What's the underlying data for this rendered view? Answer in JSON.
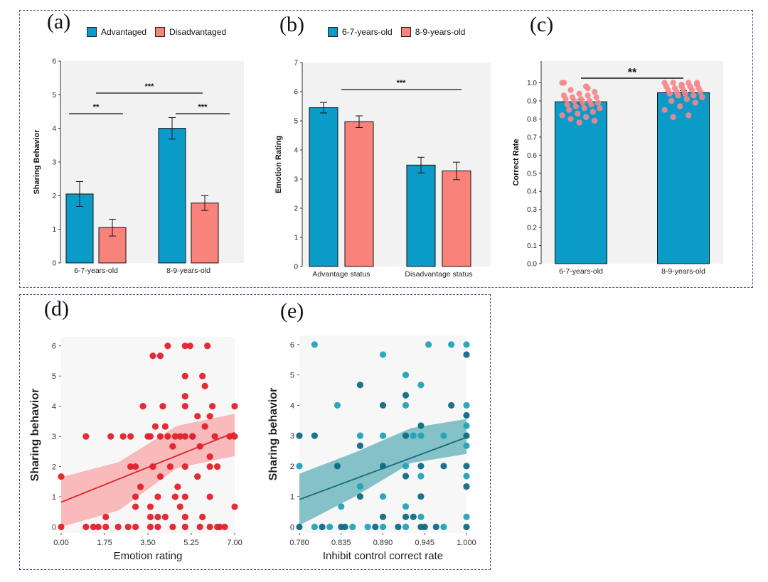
{
  "colors": {
    "blue": "#0b9bc9",
    "salmon": "#f9837a",
    "red": "#e3202b",
    "red_band": "#f8a5a6",
    "teal_dark": "#0e6b82",
    "teal_light": "#20a3b8",
    "teal_band": "#5fb0b7",
    "pink": "#f3878c",
    "plot_bg": "#f2f2f2",
    "frame": "#4a4f8a"
  },
  "panels": {
    "a": "(a)",
    "b": "(b)",
    "c": "(c)",
    "d": "(d)",
    "e": "(e)"
  },
  "chart_data": [
    {
      "id": "a",
      "type": "bar",
      "ylabel": "Sharing Behavior",
      "ylim": [
        0,
        6
      ],
      "yticks": [
        "0",
        "1",
        "2",
        "3",
        "4",
        "5",
        "6"
      ],
      "categories": [
        "6-7-years-old",
        "8-9-years-old"
      ],
      "series": [
        {
          "name": "Advantaged",
          "values": [
            2.05,
            4.0
          ],
          "errors": [
            0.37,
            0.32
          ]
        },
        {
          "name": "Disadvantaged",
          "values": [
            1.05,
            1.78
          ],
          "errors": [
            0.25,
            0.22
          ]
        }
      ],
      "annotations": [
        {
          "text": "**",
          "from": "6-7-years-old Advantaged",
          "to": "6-7-years-old Disadvantaged",
          "y": 4.4
        },
        {
          "text": "***",
          "from": "8-9-years-old Advantaged",
          "to": "8-9-years-old Disadvantaged",
          "y": 4.4
        },
        {
          "text": "***",
          "from": "6-7-years-old",
          "to": "8-9-years-old",
          "y": 5.0
        }
      ]
    },
    {
      "id": "b",
      "type": "bar",
      "ylabel": "Emotion Rating",
      "ylim": [
        0,
        7
      ],
      "yticks": [
        "0",
        "1",
        "2",
        "3",
        "4",
        "5",
        "6",
        "7"
      ],
      "categories": [
        "Advantage status",
        "Disadvantage status"
      ],
      "series": [
        {
          "name": "6-7-years-old",
          "values": [
            5.45,
            3.48
          ],
          "errors": [
            0.18,
            0.27
          ]
        },
        {
          "name": "8-9-years-old",
          "values": [
            4.97,
            3.28
          ],
          "errors": [
            0.2,
            0.3
          ]
        }
      ],
      "annotations": [
        {
          "text": "***",
          "from": "Advantage status",
          "to": "Disadvantage status",
          "y": 6.2
        }
      ]
    },
    {
      "id": "c",
      "type": "bar",
      "ylabel": "Correct Rate",
      "ylim": [
        0,
        1.12
      ],
      "yticks": [
        "0.0",
        "0.1",
        "0.2",
        "0.3",
        "0.4",
        "0.5",
        "0.6",
        "0.7",
        "0.8",
        "0.9",
        "1.0"
      ],
      "categories": [
        "6-7-years-old",
        "8-9-years-old"
      ],
      "values": [
        0.895,
        0.945
      ],
      "errors": [
        0.012,
        0.012
      ],
      "points": [
        [
          1.0,
          0.98,
          0.96,
          0.95,
          0.94,
          0.93,
          0.93,
          0.92,
          0.92,
          0.91,
          0.91,
          0.9,
          0.9,
          0.89,
          0.89,
          0.88,
          0.88,
          0.87,
          0.86,
          0.86,
          0.85,
          0.84,
          0.83,
          0.82,
          0.81,
          0.8,
          0.79,
          0.78,
          1.0,
          0.97
        ],
        [
          1.0,
          1.0,
          1.0,
          0.99,
          0.99,
          0.98,
          0.98,
          0.97,
          0.97,
          0.96,
          0.96,
          0.96,
          0.95,
          0.95,
          0.94,
          0.94,
          0.93,
          0.93,
          0.92,
          0.91,
          0.9,
          0.89,
          0.87,
          0.85,
          0.82,
          0.81,
          1.0,
          0.98
        ]
      ],
      "annotations": [
        {
          "text": "**",
          "from": "6-7-years-old",
          "to": "8-9-years-old",
          "y": 1.07
        }
      ]
    },
    {
      "id": "d",
      "type": "scatter",
      "xlabel": "Emotion rating",
      "ylabel": "Sharing behavior",
      "xlim": [
        0,
        7
      ],
      "ylim": [
        -0.2,
        6.3
      ],
      "xticks": [
        "0.00",
        "1.75",
        "3.50",
        "5.25",
        "7.00"
      ],
      "yticks": [
        "0",
        "1",
        "2",
        "3",
        "4",
        "5",
        "6"
      ],
      "fit": {
        "intercept": 0.82,
        "slope": 0.33,
        "band_lo": [
          0.0,
          0.55,
          1.95,
          2.35
        ],
        "band_hi": [
          1.65,
          2.15,
          3.35,
          3.75
        ]
      },
      "points": [
        [
          0,
          0
        ],
        [
          0,
          1.67
        ],
        [
          1,
          0
        ],
        [
          1,
          3
        ],
        [
          1.3,
          0
        ],
        [
          1.5,
          0
        ],
        [
          1.8,
          0
        ],
        [
          1.8,
          0.33
        ],
        [
          2,
          3
        ],
        [
          2.3,
          0
        ],
        [
          2.5,
          3
        ],
        [
          2.7,
          0
        ],
        [
          2.8,
          3
        ],
        [
          2.8,
          2
        ],
        [
          3,
          0
        ],
        [
          3,
          1
        ],
        [
          3,
          2
        ],
        [
          3,
          0.67
        ],
        [
          3.2,
          1.33
        ],
        [
          3.3,
          4
        ],
        [
          3.5,
          3
        ],
        [
          3.6,
          0
        ],
        [
          3.6,
          0.33
        ],
        [
          3.6,
          0.67
        ],
        [
          3.6,
          3
        ],
        [
          3.7,
          2
        ],
        [
          3.7,
          5.67
        ],
        [
          3.8,
          3.33
        ],
        [
          3.9,
          1
        ],
        [
          3.9,
          0.33
        ],
        [
          3.9,
          0
        ],
        [
          4,
          1.67
        ],
        [
          4,
          3
        ],
        [
          4,
          5.67
        ],
        [
          4.1,
          4
        ],
        [
          4.2,
          0.33
        ],
        [
          4.2,
          3.33
        ],
        [
          4.3,
          3
        ],
        [
          4.3,
          6
        ],
        [
          4.4,
          2
        ],
        [
          4.5,
          0
        ],
        [
          4.5,
          2.67
        ],
        [
          4.6,
          1
        ],
        [
          4.6,
          3
        ],
        [
          4.7,
          1.33
        ],
        [
          4.8,
          0.67
        ],
        [
          4.8,
          3
        ],
        [
          5,
          0
        ],
        [
          5,
          0.33
        ],
        [
          5,
          1
        ],
        [
          5,
          2
        ],
        [
          5,
          3
        ],
        [
          5,
          4
        ],
        [
          5,
          4.33
        ],
        [
          5,
          5
        ],
        [
          5,
          6
        ],
        [
          5.2,
          6
        ],
        [
          5.3,
          3
        ],
        [
          5.3,
          3
        ],
        [
          5.5,
          1.67
        ],
        [
          5.5,
          3.67
        ],
        [
          5.6,
          0
        ],
        [
          5.6,
          2.67
        ],
        [
          5.7,
          0.33
        ],
        [
          5.7,
          5
        ],
        [
          5.8,
          3.33
        ],
        [
          5.8,
          4.67
        ],
        [
          5.9,
          6
        ],
        [
          6,
          0
        ],
        [
          6,
          1
        ],
        [
          6,
          2
        ],
        [
          6,
          2.33
        ],
        [
          6,
          3.67
        ],
        [
          6.1,
          4
        ],
        [
          6.2,
          3
        ],
        [
          6.3,
          0
        ],
        [
          6.3,
          2
        ],
        [
          6.4,
          0
        ],
        [
          6.6,
          0
        ],
        [
          6.8,
          3
        ],
        [
          7,
          0.67
        ],
        [
          7,
          3
        ],
        [
          7,
          4
        ]
      ]
    },
    {
      "id": "e",
      "type": "scatter",
      "xlabel": "Inhibit control correct rate",
      "ylabel": "Sharing behavior",
      "xlim": [
        0.78,
        1.0
      ],
      "ylim": [
        -0.2,
        6.3
      ],
      "xticks": [
        "0.780",
        "0.835",
        "0.890",
        "0.945",
        "1.000"
      ],
      "yticks": [
        "0",
        "1",
        "2",
        "3",
        "4",
        "5",
        "6"
      ],
      "fit": {
        "intercept": 0.9,
        "slope": 9.3,
        "band_lo": [
          0.05,
          1.0,
          2.1,
          2.4
        ],
        "band_hi": [
          1.75,
          2.45,
          3.25,
          3.55
        ]
      },
      "points": [
        [
          0.78,
          0
        ],
        [
          0.78,
          2
        ],
        [
          0.78,
          3
        ],
        [
          0.8,
          0
        ],
        [
          0.8,
          3
        ],
        [
          0.8,
          6
        ],
        [
          0.81,
          0
        ],
        [
          0.82,
          0
        ],
        [
          0.83,
          2
        ],
        [
          0.83,
          4
        ],
        [
          0.835,
          0
        ],
        [
          0.835,
          0.67
        ],
        [
          0.84,
          0
        ],
        [
          0.85,
          0
        ],
        [
          0.86,
          1
        ],
        [
          0.86,
          1.33
        ],
        [
          0.86,
          2.67
        ],
        [
          0.86,
          3
        ],
        [
          0.86,
          4.67
        ],
        [
          0.87,
          0
        ],
        [
          0.88,
          0
        ],
        [
          0.89,
          0
        ],
        [
          0.89,
          0.33
        ],
        [
          0.89,
          1
        ],
        [
          0.89,
          2
        ],
        [
          0.89,
          3
        ],
        [
          0.89,
          4
        ],
        [
          0.89,
          5.67
        ],
        [
          0.91,
          0
        ],
        [
          0.92,
          0
        ],
        [
          0.92,
          0.33
        ],
        [
          0.92,
          0.67
        ],
        [
          0.92,
          1.67
        ],
        [
          0.92,
          2
        ],
        [
          0.92,
          3
        ],
        [
          0.92,
          4
        ],
        [
          0.92,
          4.33
        ],
        [
          0.92,
          5
        ],
        [
          0.93,
          0.33
        ],
        [
          0.93,
          3
        ],
        [
          0.94,
          0
        ],
        [
          0.94,
          0.33
        ],
        [
          0.94,
          1
        ],
        [
          0.94,
          1.67
        ],
        [
          0.94,
          2
        ],
        [
          0.94,
          3
        ],
        [
          0.94,
          3.33
        ],
        [
          0.94,
          4.67
        ],
        [
          0.945,
          0
        ],
        [
          0.95,
          6
        ],
        [
          0.96,
          0
        ],
        [
          0.97,
          0
        ],
        [
          0.97,
          2
        ],
        [
          0.97,
          3
        ],
        [
          0.98,
          4
        ],
        [
          0.98,
          6
        ],
        [
          1,
          0
        ],
        [
          1,
          0.33
        ],
        [
          1,
          1.33
        ],
        [
          1,
          1.67
        ],
        [
          1,
          2
        ],
        [
          1,
          2.67
        ],
        [
          1,
          3
        ],
        [
          1,
          3.33
        ],
        [
          1,
          3.67
        ],
        [
          1,
          4
        ],
        [
          1,
          5.67
        ],
        [
          1,
          6
        ]
      ]
    }
  ]
}
